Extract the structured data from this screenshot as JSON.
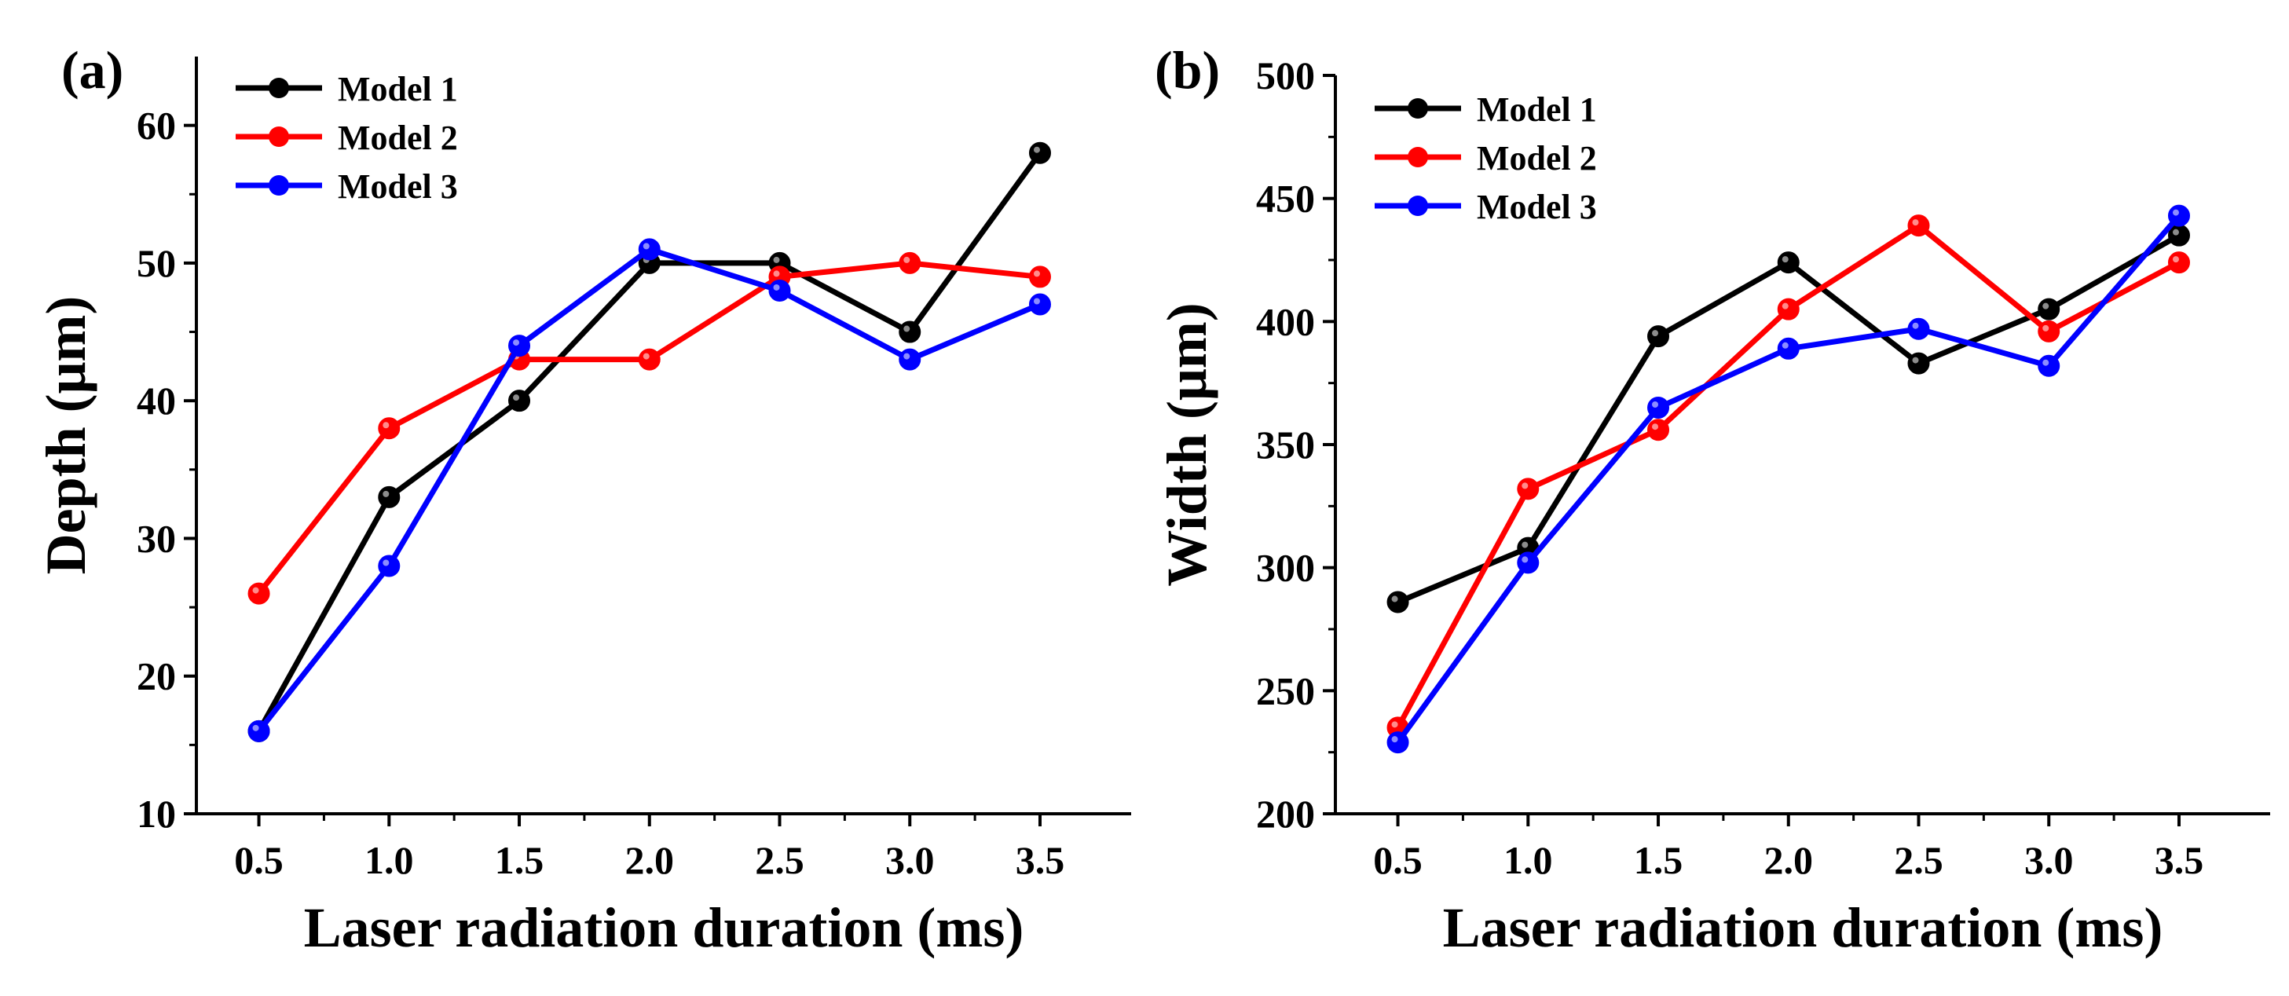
{
  "chart_data": [
    {
      "panel_label": "(a)",
      "type": "line",
      "x": [
        0.5,
        1.0,
        1.5,
        2.0,
        2.5,
        3.0,
        3.5
      ],
      "x_tick_labels": [
        "0.5",
        "1.0",
        "1.5",
        "2.0",
        "2.5",
        "3.0",
        "3.5"
      ],
      "xlabel": "Laser radiation duration  (ms)",
      "ylabel": "Depth (μm)",
      "xlim": [
        0.26,
        3.85
      ],
      "ylim": [
        10,
        65
      ],
      "y_ticks": [
        10,
        20,
        30,
        40,
        50,
        60
      ],
      "y_tick_labels": [
        "10",
        "20",
        "30",
        "40",
        "50",
        "60"
      ],
      "grid": false,
      "legend_position": "top-left",
      "series": [
        {
          "name": "Model 1",
          "color": "#000000",
          "values": [
            16,
            33,
            40,
            50,
            50,
            45,
            58
          ]
        },
        {
          "name": "Model 2",
          "color": "#ff0000",
          "values": [
            26,
            38,
            43,
            43,
            49,
            50,
            49
          ]
        },
        {
          "name": "Model 3",
          "color": "#0000ff",
          "values": [
            16,
            28,
            44,
            51,
            48,
            43,
            47
          ]
        }
      ]
    },
    {
      "panel_label": "(b)",
      "type": "line",
      "x": [
        0.5,
        1.0,
        1.5,
        2.0,
        2.5,
        3.0,
        3.5
      ],
      "x_tick_labels": [
        "0.5",
        "1.0",
        "1.5",
        "2.0",
        "2.5",
        "3.0",
        "3.5"
      ],
      "xlabel": "Laser radiation duration  (ms)",
      "ylabel": "Width (μm)",
      "xlim": [
        0.26,
        3.85
      ],
      "ylim": [
        200,
        500
      ],
      "y_ticks": [
        200,
        250,
        300,
        350,
        400,
        450,
        500
      ],
      "y_tick_labels": [
        "200",
        "250",
        "300",
        "350",
        "400",
        "450",
        "500"
      ],
      "grid": false,
      "legend_position": "top-left",
      "series": [
        {
          "name": "Model 1",
          "color": "#000000",
          "values": [
            286,
            308,
            394,
            424,
            383,
            405,
            435
          ]
        },
        {
          "name": "Model 2",
          "color": "#ff0000",
          "values": [
            235,
            332,
            356,
            405,
            439,
            396,
            424
          ]
        },
        {
          "name": "Model 3",
          "color": "#0000ff",
          "values": [
            229,
            302,
            365,
            389,
            397,
            382,
            443
          ]
        }
      ]
    }
  ]
}
